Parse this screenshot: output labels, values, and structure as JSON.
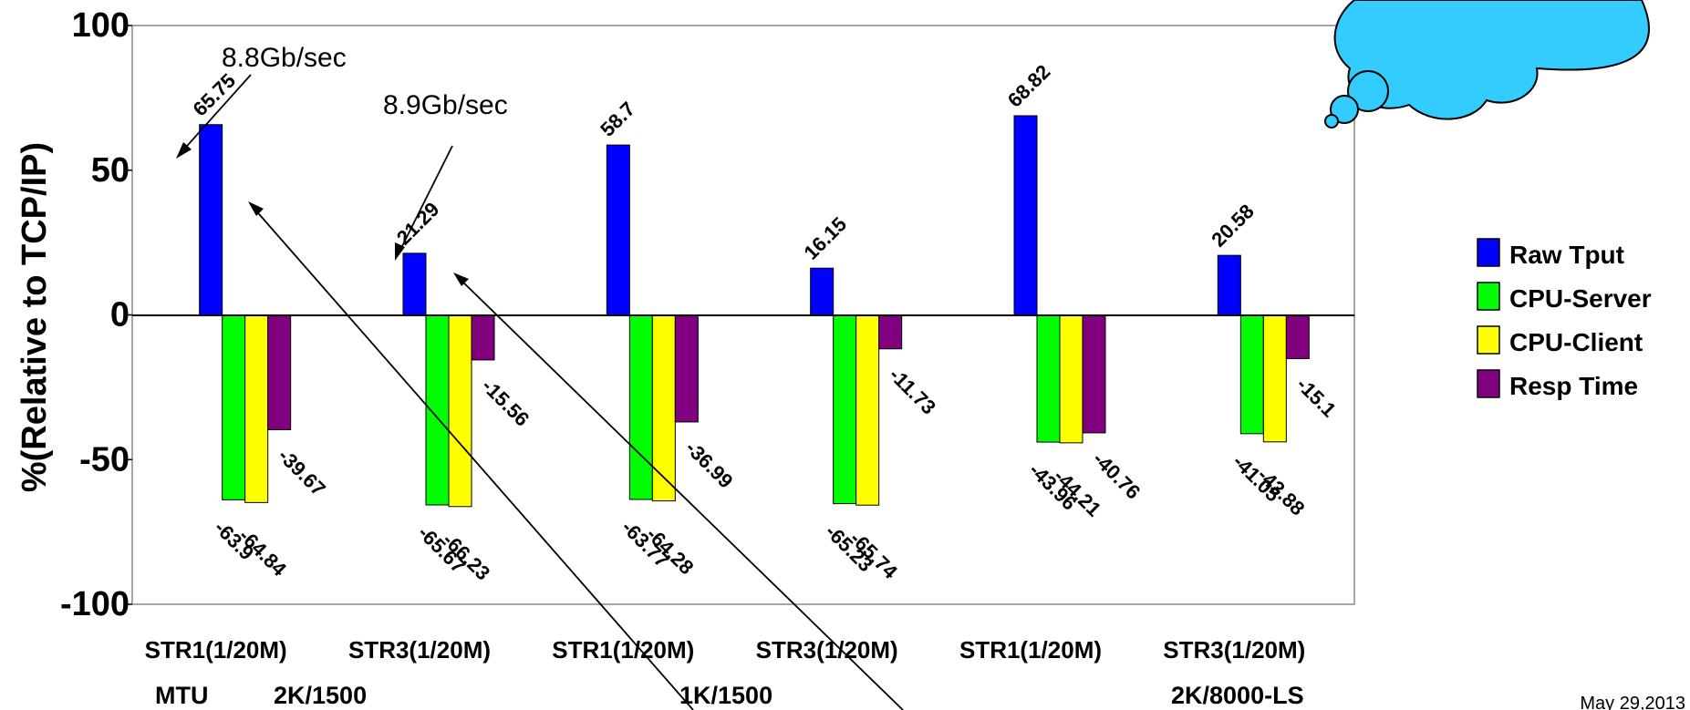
{
  "chart_data": {
    "type": "bar",
    "ylabel": "%(Relative to TCP/IP)",
    "ylim": [
      -100,
      100
    ],
    "yticks": [
      100,
      50,
      0,
      -50,
      -100
    ],
    "categories": [
      "STR1(1/20M)",
      "STR3(1/20M)",
      "STR1(1/20M)",
      "STR3(1/20M)",
      "STR1(1/20M)",
      "STR3(1/20M)"
    ],
    "series": [
      {
        "name": "Raw Tput",
        "color": "#0000ff",
        "values": [
          65.75,
          21.29,
          58.7,
          16.15,
          68.82,
          20.58
        ]
      },
      {
        "name": "CPU-Server",
        "color": "#00ff00",
        "values": [
          -63.9,
          -65.67,
          -63.77,
          -65.23,
          -43.96,
          -41.05
        ]
      },
      {
        "name": "CPU-Client",
        "color": "#ffff00",
        "values": [
          -64.84,
          -66.23,
          -64.28,
          -65.74,
          -44.21,
          -43.88
        ]
      },
      {
        "name": "Resp Time",
        "color": "#800080",
        "values": [
          -39.67,
          -15.56,
          -36.99,
          -11.73,
          -40.76,
          -15.1
        ]
      }
    ],
    "group_labels": {
      "prefix": "MTU",
      "items": [
        "2K/1500",
        "1K/1500",
        "2K/8000-LS"
      ]
    },
    "annotations": [
      "8.8Gb/sec",
      "8.9Gb/sec"
    ],
    "legend": "right",
    "date": "May 29,2013"
  }
}
